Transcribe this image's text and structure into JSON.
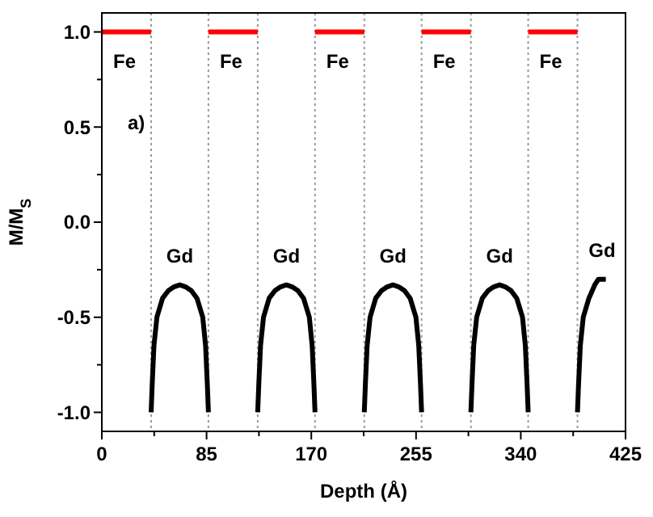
{
  "chart_data": {
    "type": "line",
    "xlabel": "Depth (Å)",
    "ylabel": "M/M$_{S}$",
    "xlim": [
      0,
      425
    ],
    "ylim": [
      -1.1,
      1.1
    ],
    "xticks": [
      0,
      {
        "value": 42.5,
        "label": null
      },
      85,
      {
        "value": 127.5,
        "label": null
      },
      170,
      {
        "value": 212.5,
        "label": null
      },
      255,
      {
        "value": 297.5,
        "label": null
      },
      340,
      {
        "value": 382.5,
        "label": null
      },
      425
    ],
    "yticks": [
      {
        "value": -1,
        "label": "-1.0"
      },
      {
        "value": -0.75,
        "label": null
      },
      {
        "value": -0.5,
        "label": "-0.5"
      },
      {
        "value": -0.25,
        "label": null
      },
      {
        "value": 0,
        "label": "0.0"
      },
      {
        "value": 0.25,
        "label": null
      },
      {
        "value": 0.5,
        "label": "0.5"
      },
      {
        "value": 0.75,
        "label": null
      },
      {
        "value": 1,
        "label": "1.0"
      }
    ],
    "grid": false,
    "marker": "none",
    "line_style": "solid",
    "series": [
      {
        "color": "#ff0000",
        "x": [
          0,
          40,
          null,
          86.5,
          126.5,
          null,
          173,
          213,
          null,
          259.5,
          299.5,
          null,
          346,
          386
        ],
        "values": [
          1,
          1,
          null,
          1,
          1,
          null,
          1,
          1,
          null,
          1,
          1,
          null,
          1,
          1
        ]
      },
      {
        "color": "#000000",
        "x": [
          40,
          40.9,
          42.3,
          44.7,
          49.3,
          54,
          58.6,
          63.3,
          67.9,
          72.6,
          77.2,
          81.9,
          84.2,
          85.6,
          86.5,
          null,
          126.5,
          127.4,
          128.8,
          131.2,
          135.8,
          140.5,
          145.1,
          149.8,
          154.4,
          159.1,
          163.7,
          168.4,
          170.7,
          172.1,
          173,
          null,
          213,
          213.9,
          215.3,
          217.7,
          222.3,
          227,
          231.6,
          236.3,
          240.9,
          245.6,
          250.2,
          254.9,
          257.2,
          258.6,
          259.5,
          null,
          299.5,
          300.4,
          301.8,
          304.2,
          308.8,
          313.5,
          318.1,
          322.8,
          327.4,
          332.1,
          336.7,
          341.4,
          343.7,
          345.1,
          346,
          null,
          386,
          386.9,
          388.3,
          390.7,
          395.3,
          400,
          403,
          409
        ],
        "values": [
          -1,
          -0.85,
          -0.65,
          -0.5,
          -0.4,
          -0.36,
          -0.34,
          -0.33,
          -0.34,
          -0.36,
          -0.4,
          -0.5,
          -0.65,
          -0.85,
          -1,
          null,
          -1,
          -0.85,
          -0.65,
          -0.5,
          -0.4,
          -0.36,
          -0.34,
          -0.33,
          -0.34,
          -0.36,
          -0.4,
          -0.5,
          -0.65,
          -0.85,
          -1,
          null,
          -1,
          -0.85,
          -0.65,
          -0.5,
          -0.4,
          -0.36,
          -0.34,
          -0.33,
          -0.34,
          -0.36,
          -0.4,
          -0.5,
          -0.65,
          -0.85,
          -1,
          null,
          -1,
          -0.85,
          -0.65,
          -0.5,
          -0.4,
          -0.36,
          -0.34,
          -0.33,
          -0.34,
          -0.36,
          -0.4,
          -0.5,
          -0.65,
          -0.85,
          -1,
          null,
          -1,
          -0.85,
          -0.65,
          -0.5,
          -0.4,
          -0.33,
          -0.3,
          -0.3
        ]
      }
    ],
    "ref_lines": [
      {
        "axis": "x",
        "value": 40,
        "color": "#999999",
        "line_style": "dotted"
      },
      {
        "axis": "x",
        "value": 86.5,
        "color": "#999999",
        "line_style": "dotted"
      },
      {
        "axis": "x",
        "value": 126.5,
        "color": "#999999",
        "line_style": "dotted"
      },
      {
        "axis": "x",
        "value": 173,
        "color": "#999999",
        "line_style": "dotted"
      },
      {
        "axis": "x",
        "value": 213,
        "color": "#999999",
        "line_style": "dotted"
      },
      {
        "axis": "x",
        "value": 259.5,
        "color": "#999999",
        "line_style": "dotted"
      },
      {
        "axis": "x",
        "value": 299.5,
        "color": "#999999",
        "line_style": "dotted"
      },
      {
        "axis": "x",
        "value": 346,
        "color": "#999999",
        "line_style": "dotted"
      },
      {
        "axis": "x",
        "value": 386,
        "color": "#999999",
        "line_style": "dotted"
      }
    ],
    "annotations": [
      "a)",
      "Fe",
      "Fe",
      "Fe",
      "Fe",
      "Fe",
      "Gd",
      "Gd",
      "Gd",
      "Gd",
      "Gd"
    ]
  }
}
